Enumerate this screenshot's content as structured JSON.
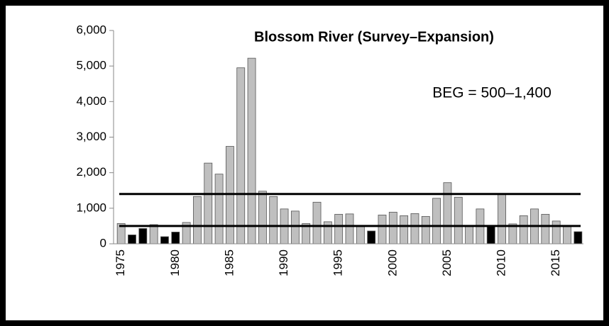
{
  "chart_data": {
    "type": "bar",
    "title": "Blossom River (Survey–Expansion)",
    "annotation": "BEG = 500–1,400",
    "categories": [
      "1975",
      null,
      null,
      null,
      null,
      "1980",
      null,
      null,
      null,
      null,
      "1985",
      null,
      null,
      null,
      null,
      "1990",
      null,
      null,
      null,
      null,
      "1995",
      null,
      null,
      null,
      null,
      "2000",
      null,
      null,
      null,
      null,
      "2005",
      null,
      null,
      null,
      null,
      "2010",
      null,
      null,
      null,
      null,
      "2015",
      null,
      null
    ],
    "values": [
      570,
      250,
      430,
      540,
      200,
      330,
      600,
      1330,
      2270,
      1960,
      2740,
      4950,
      5220,
      1480,
      1330,
      980,
      920,
      570,
      1170,
      620,
      830,
      840,
      510,
      360,
      810,
      890,
      790,
      850,
      770,
      1280,
      1720,
      1310,
      510,
      980,
      490,
      1390,
      560,
      790,
      980,
      830,
      640,
      510,
      340
    ],
    "bar_colors": [
      "#bfbfbf",
      "#000000",
      "#000000",
      "#bfbfbf",
      "#000000",
      "#000000",
      "#bfbfbf",
      "#bfbfbf",
      "#bfbfbf",
      "#bfbfbf",
      "#bfbfbf",
      "#bfbfbf",
      "#bfbfbf",
      "#bfbfbf",
      "#bfbfbf",
      "#bfbfbf",
      "#bfbfbf",
      "#bfbfbf",
      "#bfbfbf",
      "#bfbfbf",
      "#bfbfbf",
      "#bfbfbf",
      "#bfbfbf",
      "#000000",
      "#bfbfbf",
      "#bfbfbf",
      "#bfbfbf",
      "#bfbfbf",
      "#bfbfbf",
      "#bfbfbf",
      "#bfbfbf",
      "#bfbfbf",
      "#bfbfbf",
      "#bfbfbf",
      "#000000",
      "#bfbfbf",
      "#bfbfbf",
      "#bfbfbf",
      "#bfbfbf",
      "#bfbfbf",
      "#bfbfbf",
      "#bfbfbf",
      "#000000"
    ],
    "hlines": [
      500,
      1400
    ],
    "ylim": [
      0,
      6000
    ],
    "yticks": [
      0,
      {
        "value": 1000,
        "label": "1,000"
      },
      {
        "value": 2000,
        "label": "2,000"
      },
      {
        "value": 3000,
        "label": "3,000"
      },
      {
        "value": 4000,
        "label": "4,000"
      },
      {
        "value": 5000,
        "label": "5,000"
      },
      {
        "value": 6000,
        "label": "6,000"
      }
    ],
    "grid": false
  }
}
